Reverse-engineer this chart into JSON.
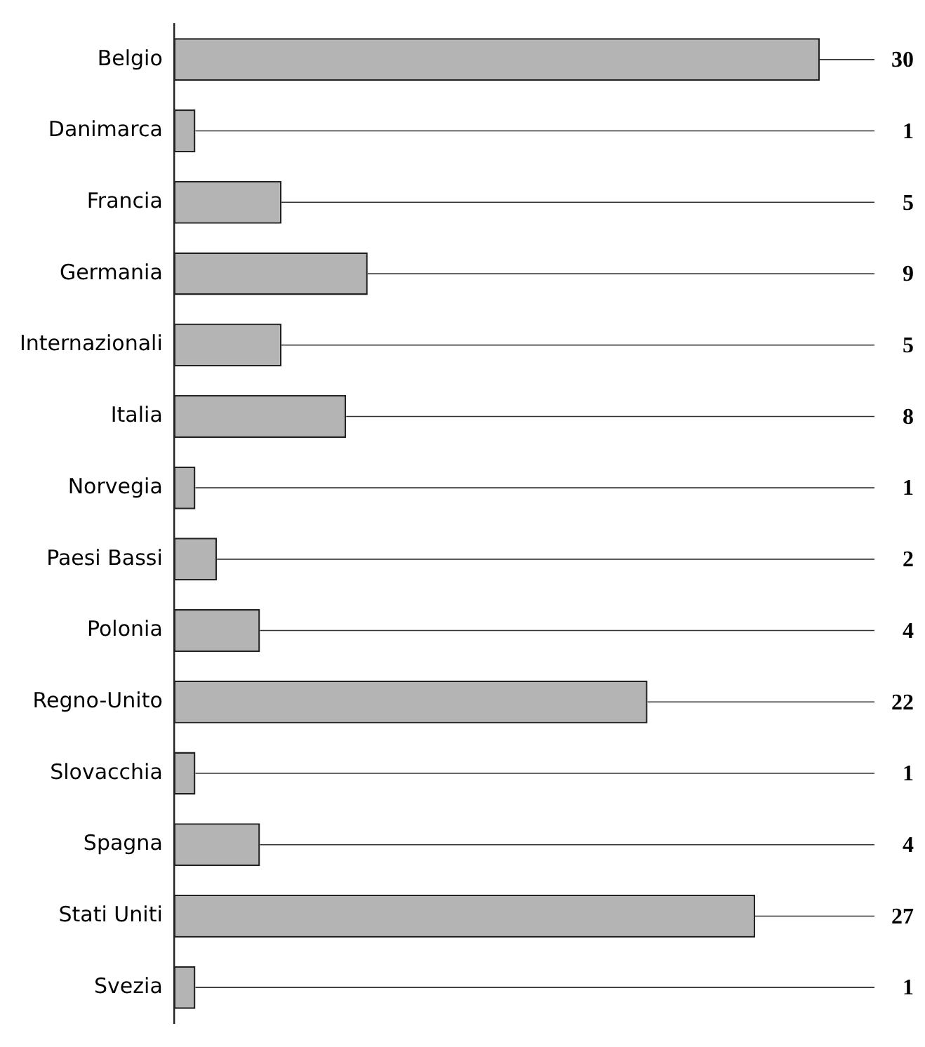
{
  "chart_data": {
    "type": "bar",
    "orientation": "horizontal",
    "categories": [
      "Belgio",
      "Danimarca",
      "Francia",
      "Germania",
      "Internazionali",
      "Italia",
      "Norvegia",
      "Paesi Bassi",
      "Polonia",
      "Regno-Unito",
      "Slovacchia",
      "Spagna",
      "Stati Uniti",
      "Svezia"
    ],
    "values": [
      30,
      1,
      5,
      9,
      5,
      8,
      1,
      2,
      4,
      22,
      1,
      4,
      27,
      1
    ],
    "color": "#b4b4b4",
    "xlim": [
      0,
      30
    ],
    "data_labels": true,
    "tick_labels": "y",
    "legend": false
  }
}
